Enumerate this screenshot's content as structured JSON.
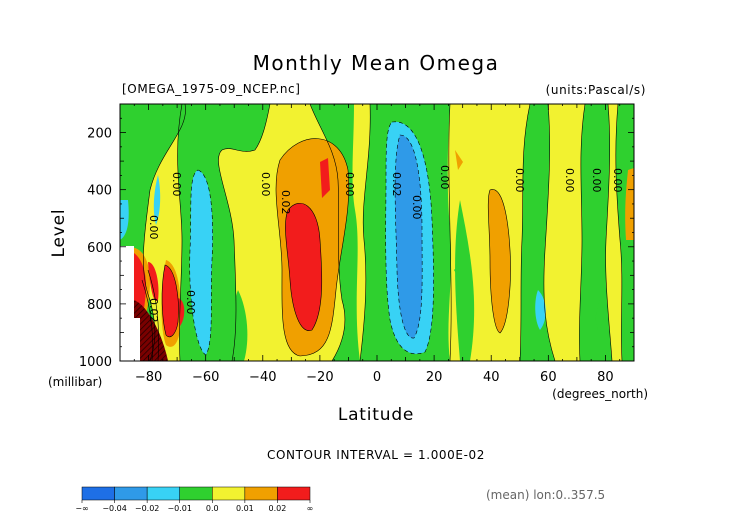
{
  "chart_data": {
    "type": "heatmap",
    "title": "Monthly Mean Omega",
    "file_label": "[OMEGA_1975-09_NCEP.nc]",
    "units_label": "(units:Pascal/s)",
    "xlabel": "Latitude",
    "x_unit_label": "(degrees_north)",
    "ylabel": "Level",
    "y_unit_label": "(millibar)",
    "xlim": [
      -90,
      90
    ],
    "ylim": [
      1000,
      100
    ],
    "x_ticks": [
      "-80",
      "-60",
      "-40",
      "-20",
      "0",
      "20",
      "40",
      "60",
      "80"
    ],
    "y_ticks": [
      "200",
      "400",
      "600",
      "800",
      "1000"
    ],
    "contour_interval_label": "CONTOUR INTERVAL = 1.000E-02",
    "mean_note": "(mean) lon:0..357.5",
    "contour_labels": [
      "0.00",
      "0.00",
      "0.00",
      "0.02",
      "0.00",
      "0.02",
      "0.00",
      "0.00",
      "0.00",
      "0.00",
      "0.00",
      "0.00",
      "0.02",
      "0.00"
    ],
    "colorbar": {
      "labels": [
        "-∞",
        "-0.04",
        "-0.02",
        "-0.01",
        "0.0",
        "0.01",
        "0.02",
        "∞"
      ],
      "colors": [
        "#1e6fe6",
        "#2f9ae8",
        "#38d2f5",
        "#2fd02f",
        "#f2f230",
        "#f0a000",
        "#f21c1c"
      ]
    },
    "colors": {
      "neg_strong": "#1e6fe6",
      "neg_mid": "#2f9ae8",
      "neg_weak": "#38d2f5",
      "near_zero_neg": "#2fd02f",
      "near_zero_pos": "#f2f230",
      "pos_mid": "#f0a000",
      "pos_strong": "#f21c1c",
      "extreme": "#8a0000"
    }
  }
}
